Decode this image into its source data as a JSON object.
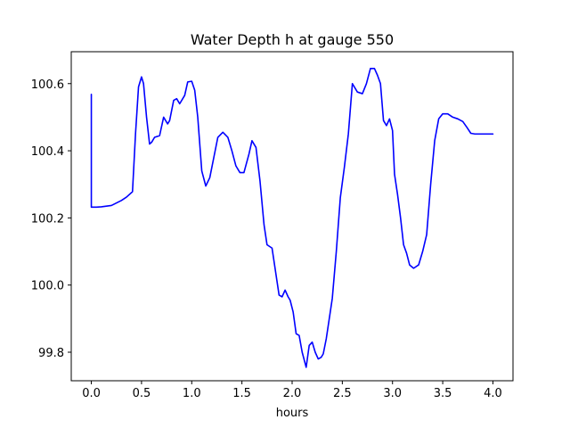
{
  "chart_data": {
    "type": "line",
    "title": "Water Depth h at gauge 550",
    "xlabel": "hours",
    "ylabel": "",
    "xlim": [
      -0.2,
      4.2
    ],
    "ylim": [
      99.715,
      100.695
    ],
    "xticks": [
      0.0,
      0.5,
      1.0,
      1.5,
      2.0,
      2.5,
      3.0,
      3.5,
      4.0
    ],
    "xtick_labels": [
      "0.0",
      "0.5",
      "1.0",
      "1.5",
      "2.0",
      "2.5",
      "3.0",
      "3.5",
      "4.0"
    ],
    "yticks": [
      99.8,
      100.0,
      100.2,
      100.4,
      100.6
    ],
    "ytick_labels": [
      "99.8",
      "100.0",
      "100.2",
      "100.4",
      "100.6"
    ],
    "grid": false,
    "series": [
      {
        "color": "#0000ff",
        "x": [
          0.0,
          0.0,
          0.05,
          0.1,
          0.2,
          0.3,
          0.35,
          0.41,
          0.44,
          0.47,
          0.5,
          0.52,
          0.55,
          0.58,
          0.6,
          0.63,
          0.68,
          0.72,
          0.76,
          0.78,
          0.82,
          0.85,
          0.88,
          0.93,
          0.96,
          1.0,
          1.03,
          1.06,
          1.1,
          1.14,
          1.18,
          1.22,
          1.26,
          1.31,
          1.36,
          1.4,
          1.44,
          1.48,
          1.52,
          1.57,
          1.6,
          1.64,
          1.68,
          1.72,
          1.75,
          1.8,
          1.83,
          1.87,
          1.9,
          1.93,
          1.96,
          1.98,
          2.01,
          2.04,
          2.07,
          2.1,
          2.14,
          2.17,
          2.2,
          2.23,
          2.26,
          2.29,
          2.31,
          2.34,
          2.37,
          2.4,
          2.44,
          2.48,
          2.52,
          2.56,
          2.6,
          2.65,
          2.7,
          2.74,
          2.78,
          2.82,
          2.85,
          2.88,
          2.91,
          2.94,
          2.97,
          3.0,
          3.02,
          3.05,
          3.08,
          3.11,
          3.14,
          3.17,
          3.21,
          3.26,
          3.3,
          3.34,
          3.38,
          3.42,
          3.46,
          3.5,
          3.55,
          3.6,
          3.65,
          3.7,
          3.74,
          3.78,
          3.82,
          3.86,
          3.9,
          3.94,
          3.97,
          4.0
        ],
        "y": [
          100.568,
          100.232,
          100.232,
          100.233,
          100.237,
          100.252,
          100.262,
          100.278,
          100.45,
          100.59,
          100.62,
          100.6,
          100.5,
          100.42,
          100.425,
          100.44,
          100.445,
          100.5,
          100.48,
          100.49,
          100.55,
          100.555,
          100.54,
          100.565,
          100.605,
          100.607,
          100.58,
          100.5,
          100.34,
          100.295,
          100.32,
          100.38,
          100.44,
          100.455,
          100.44,
          100.4,
          100.355,
          100.335,
          100.335,
          100.39,
          100.43,
          100.41,
          100.31,
          100.18,
          100.12,
          100.11,
          100.05,
          99.97,
          99.965,
          99.985,
          99.965,
          99.955,
          99.92,
          99.855,
          99.85,
          99.8,
          99.755,
          99.82,
          99.83,
          99.8,
          99.78,
          99.785,
          99.795,
          99.84,
          99.9,
          99.96,
          100.1,
          100.26,
          100.35,
          100.45,
          100.6,
          100.575,
          100.57,
          100.6,
          100.645,
          100.645,
          100.625,
          100.6,
          100.49,
          100.475,
          100.495,
          100.46,
          100.33,
          100.27,
          100.2,
          100.12,
          100.095,
          100.06,
          100.05,
          100.06,
          100.1,
          100.15,
          100.3,
          100.43,
          100.495,
          100.51,
          100.51,
          100.5,
          100.495,
          100.487,
          100.47,
          100.452,
          100.45,
          100.45,
          100.45,
          100.45,
          100.45,
          100.45
        ]
      }
    ]
  }
}
